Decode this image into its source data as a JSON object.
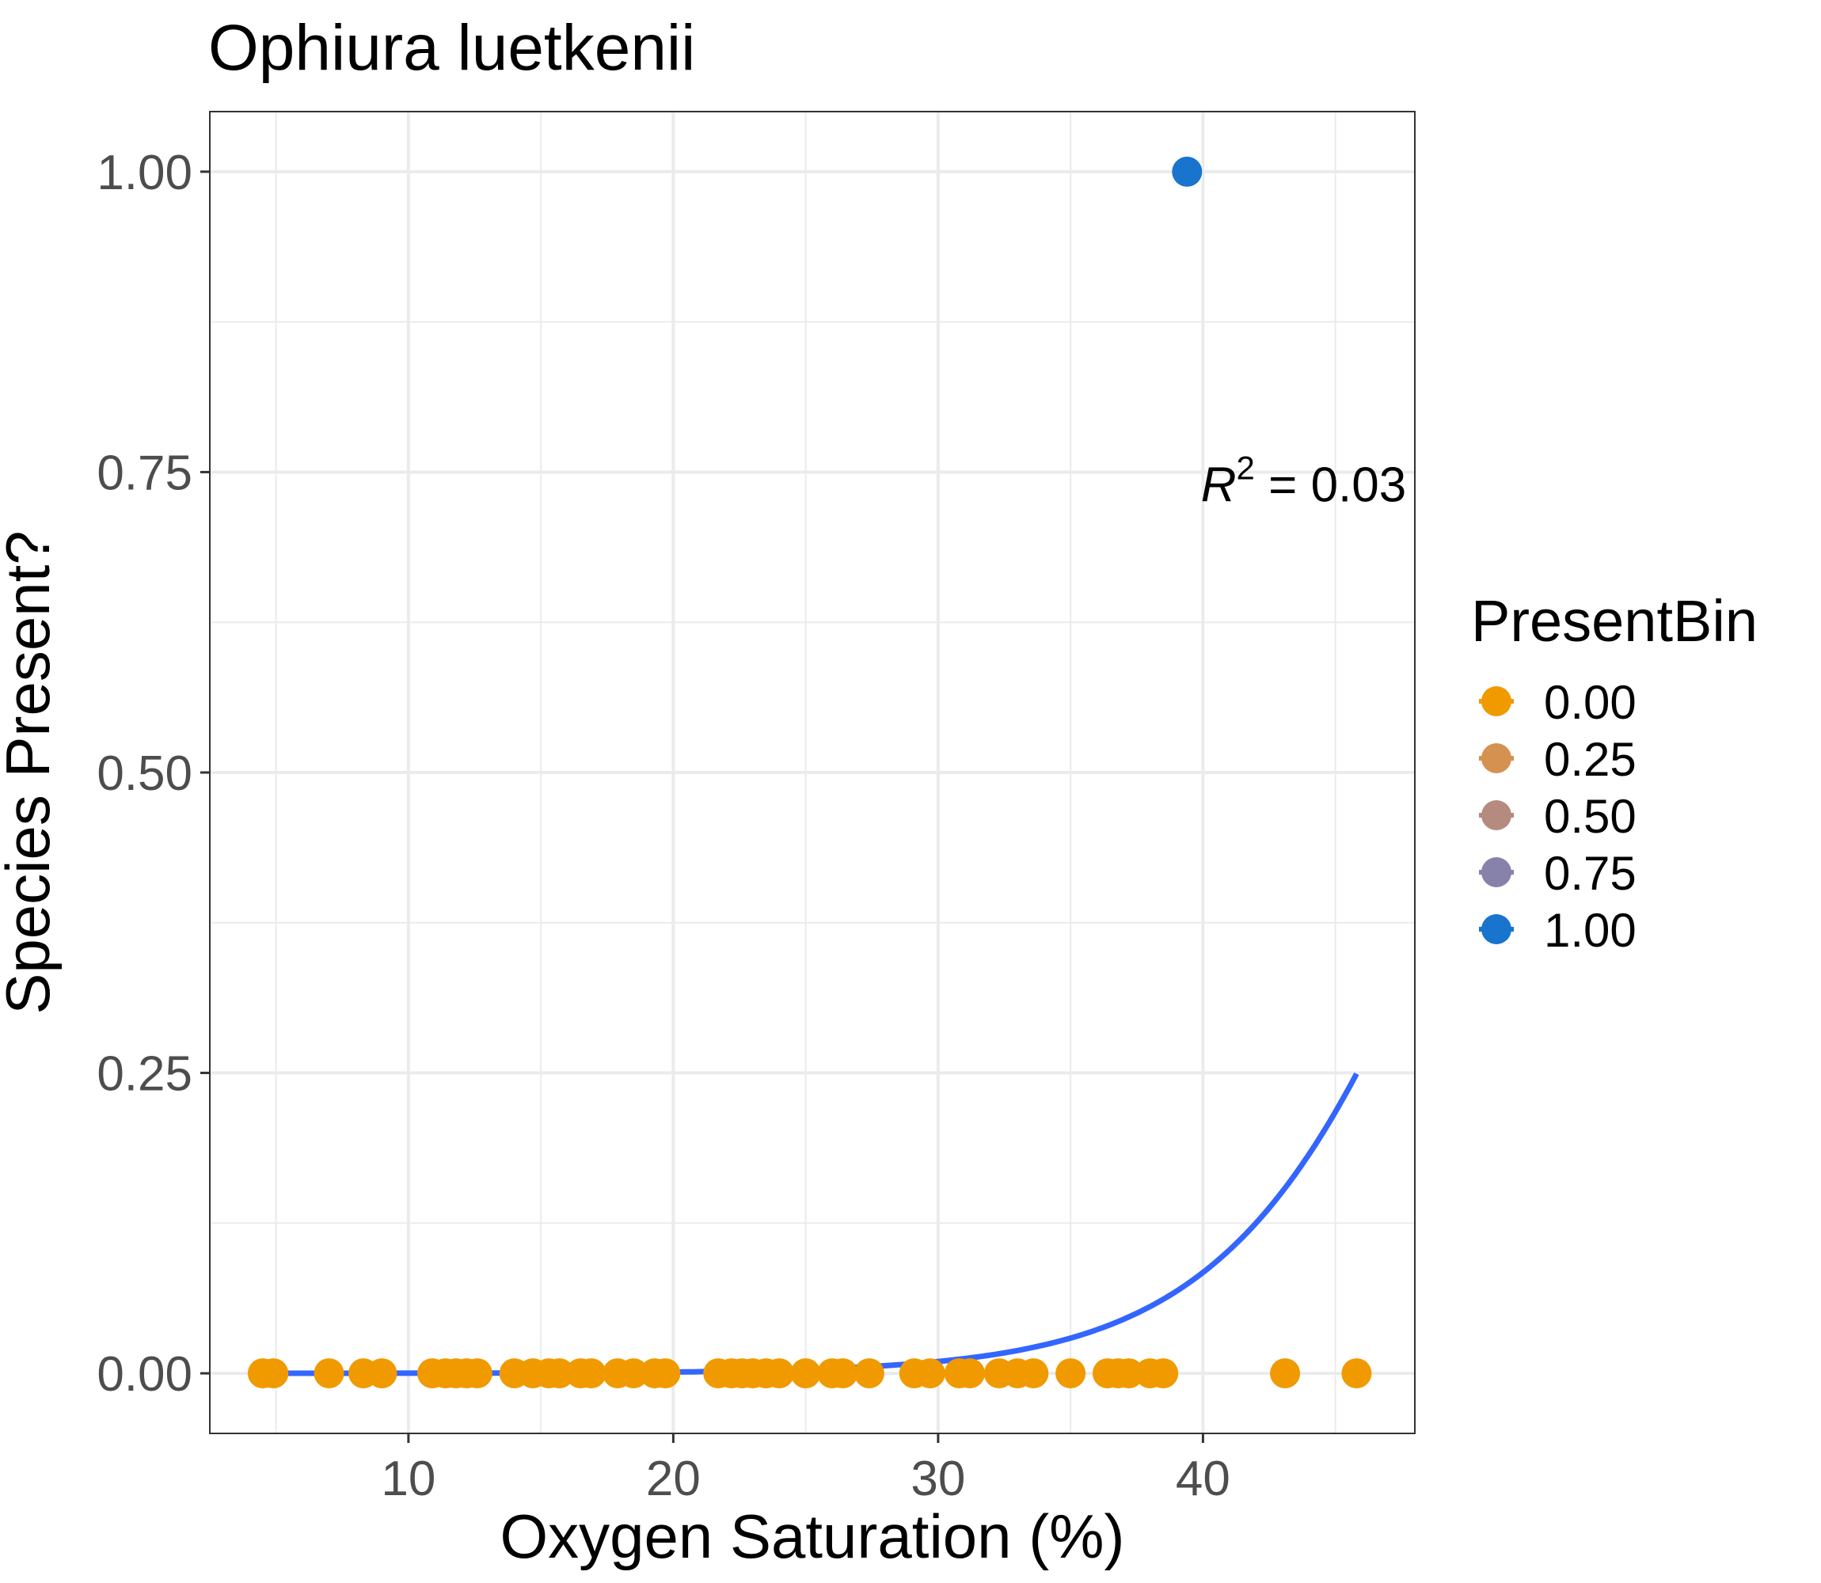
{
  "chart_data": {
    "type": "scatter",
    "title": "Ophiura luetkenii",
    "xlabel": "Oxygen Saturation (%)",
    "ylabel": "Species Present?",
    "xlim": [
      2.5,
      48
    ],
    "ylim": [
      -0.05,
      1.05
    ],
    "x_ticks": [
      10,
      20,
      30,
      40
    ],
    "x_tick_labels": [
      "10",
      "20",
      "30",
      "40"
    ],
    "y_ticks": [
      0,
      0.25,
      0.5,
      0.75,
      1.0
    ],
    "y_tick_labels": [
      "0.00",
      "0.25",
      "0.50",
      "0.75",
      "1.00"
    ],
    "x_minor_ticks": [
      5,
      15,
      25,
      35,
      45
    ],
    "y_minor_ticks": [
      0.125,
      0.375,
      0.625,
      0.875
    ],
    "grid": true,
    "annotation": {
      "prefix": "R",
      "superscript": "2",
      "text": " = 0.03",
      "x": 43.8,
      "y": 0.74
    },
    "legend": {
      "title": "PresentBin",
      "position": "right",
      "entries": [
        {
          "label": "0.00",
          "color": "#F09A00"
        },
        {
          "label": "0.25",
          "color": "#D49150"
        },
        {
          "label": "0.50",
          "color": "#B58B80"
        },
        {
          "label": "0.75",
          "color": "#8682AA"
        },
        {
          "label": "1.00",
          "color": "#1874CD"
        }
      ]
    },
    "color_absent": "#F09A00",
    "color_present": "#1874CD",
    "points": {
      "x": [
        4.5,
        4.9,
        7.0,
        8.3,
        9.0,
        10.9,
        11.4,
        11.8,
        12.2,
        12.6,
        14.0,
        14.7,
        15.3,
        15.7,
        16.5,
        16.9,
        17.9,
        18.5,
        19.3,
        19.7,
        21.7,
        22.2,
        22.6,
        23.0,
        23.5,
        24.0,
        25.0,
        26.0,
        26.4,
        27.4,
        29.1,
        29.7,
        30.8,
        31.2,
        32.3,
        33.0,
        33.6,
        35.0,
        36.4,
        36.8,
        37.2,
        38.0,
        38.5,
        39.4,
        43.1,
        45.8
      ],
      "y": [
        0,
        0,
        0,
        0,
        0,
        0,
        0,
        0,
        0,
        0,
        0,
        0,
        0,
        0,
        0,
        0,
        0,
        0,
        0,
        0,
        0,
        0,
        0,
        0,
        0,
        0,
        0,
        0,
        0,
        0,
        0,
        0,
        0,
        0,
        0,
        0,
        0,
        0,
        0,
        0,
        0,
        0,
        0,
        1,
        0,
        0
      ]
    },
    "fit": {
      "name": "logistic fit",
      "color": "#3366FF",
      "x_start": 4.5,
      "x_end": 45.8,
      "intercept": -11.27,
      "slope": 0.222
    }
  }
}
